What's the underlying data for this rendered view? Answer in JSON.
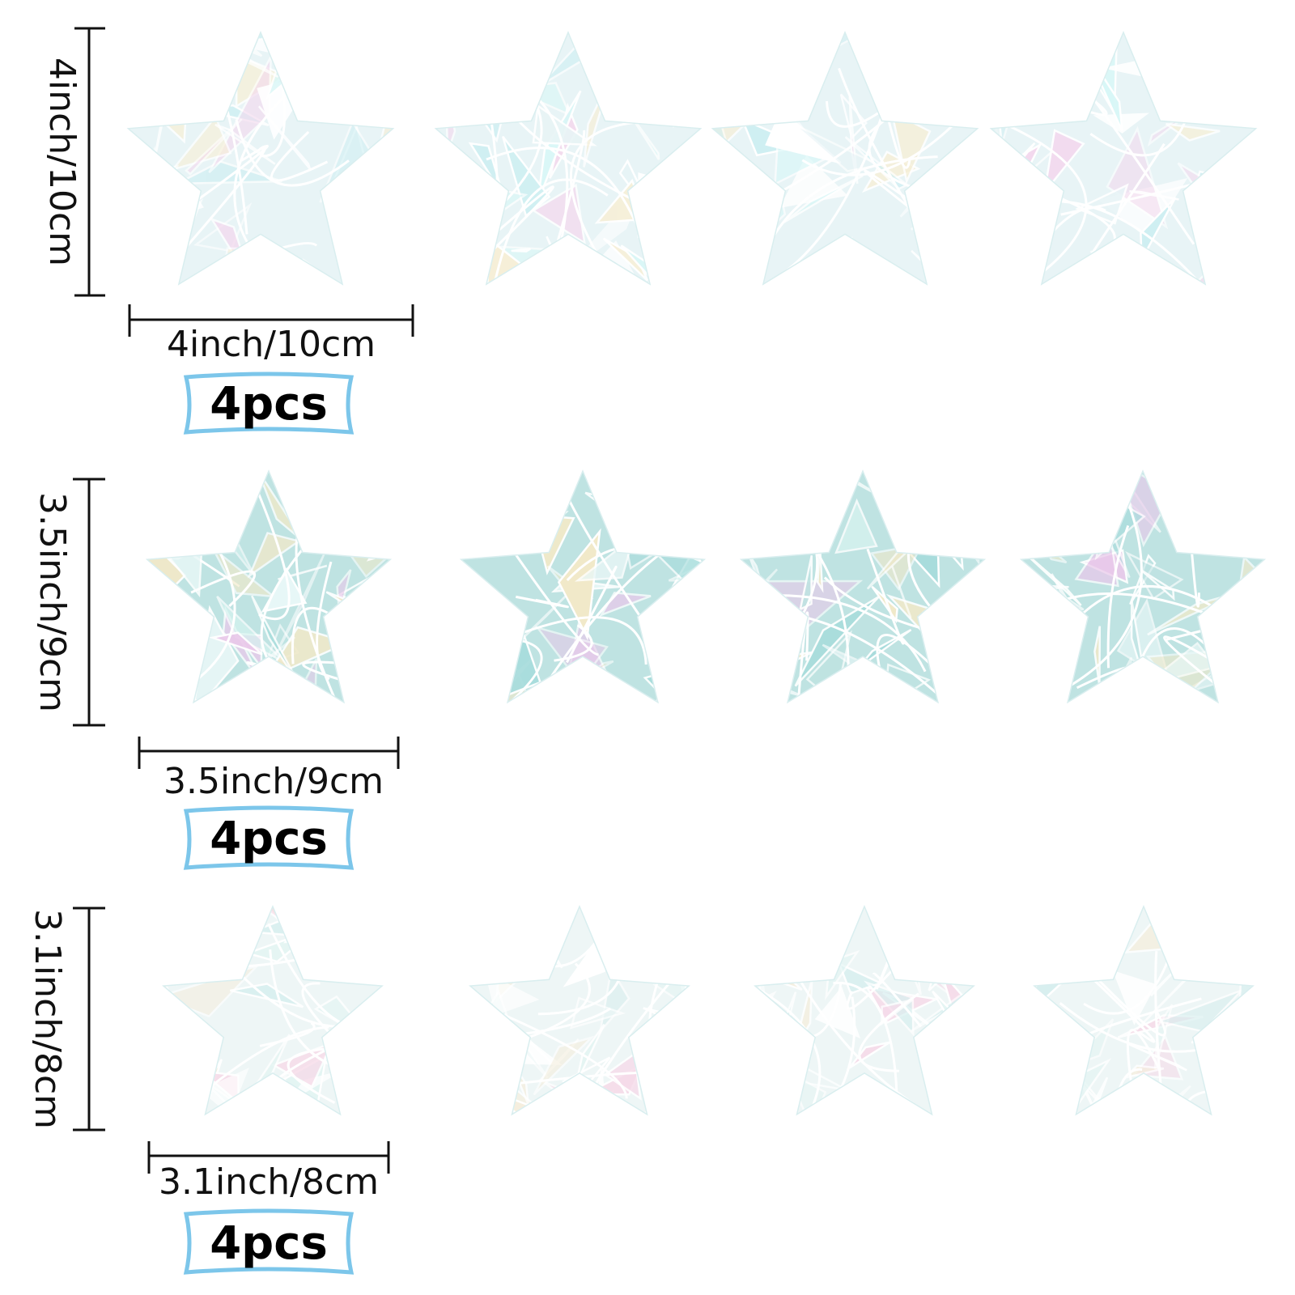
{
  "rows": [
    {
      "height_label": "4inch/10cm",
      "width_label": "4inch/10cm",
      "quantity_label": "4pcs",
      "sticker_count": 4,
      "tint": [
        "#e8f4f6",
        "#cfeff2",
        "#f3d9ee",
        "#d9f7f7",
        "#f6efd8",
        "#ffffff"
      ]
    },
    {
      "height_label": "3.5inch/9cm",
      "width_label": "3.5inch/9cm",
      "quantity_label": "4pcs",
      "sticker_count": 4,
      "tint": [
        "#bfe3e2",
        "#a8dcdc",
        "#e9c8ea",
        "#d6f3ef",
        "#f1e9c9",
        "#e8f7f7"
      ]
    },
    {
      "height_label": "3.1inch/8cm",
      "width_label": "3.1inch/8cm",
      "quantity_label": "4pcs",
      "sticker_count": 4,
      "tint": [
        "#eef6f6",
        "#d8efef",
        "#f6dbe9",
        "#e4f5f3",
        "#f5eedd",
        "#ffffff"
      ]
    }
  ],
  "colors": {
    "background": "#ffffff",
    "rule": "#111111",
    "badge_border": "#7cc6ea",
    "facet_line": "#ffffff"
  }
}
